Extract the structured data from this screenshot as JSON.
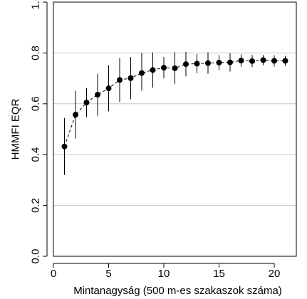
{
  "chart_data": {
    "type": "scatter",
    "title": "",
    "xlabel": "Mintanagyság (500 m-es szakaszok száma)",
    "ylabel": "HMMFI EQR",
    "xlim": [
      0,
      22
    ],
    "ylim": [
      0,
      1
    ],
    "x_ticks": [
      0,
      5,
      10,
      15,
      20
    ],
    "x_tick_labels": [
      "0",
      "5",
      "10",
      "15",
      "20"
    ],
    "y_ticks": [
      0.0,
      0.2,
      0.4,
      0.6,
      0.8,
      1.0
    ],
    "y_tick_labels": [
      "0.0",
      "0.2",
      "0.4",
      "0.6",
      "0.8",
      "1.0"
    ],
    "grid": "horizontal",
    "series": [
      {
        "x": [
          1,
          2,
          3,
          4,
          5,
          6,
          7,
          8,
          9,
          10,
          11,
          12,
          13,
          14,
          15,
          16,
          17,
          18,
          19,
          20,
          21
        ],
        "y": [
          0.432,
          0.557,
          0.605,
          0.636,
          0.661,
          0.694,
          0.701,
          0.721,
          0.733,
          0.742,
          0.74,
          0.756,
          0.758,
          0.76,
          0.762,
          0.763,
          0.77,
          0.768,
          0.772,
          0.769,
          0.769
        ],
        "y_low": [
          0.32,
          0.463,
          0.548,
          0.553,
          0.57,
          0.608,
          0.618,
          0.652,
          0.664,
          0.7,
          0.677,
          0.708,
          0.72,
          0.718,
          0.732,
          0.727,
          0.746,
          0.744,
          0.752,
          0.747,
          0.749
        ],
        "y_high": [
          0.544,
          0.651,
          0.662,
          0.719,
          0.752,
          0.78,
          0.784,
          0.8,
          0.802,
          0.784,
          0.803,
          0.804,
          0.796,
          0.802,
          0.792,
          0.799,
          0.794,
          0.792,
          0.792,
          0.791,
          0.789
        ]
      }
    ]
  }
}
